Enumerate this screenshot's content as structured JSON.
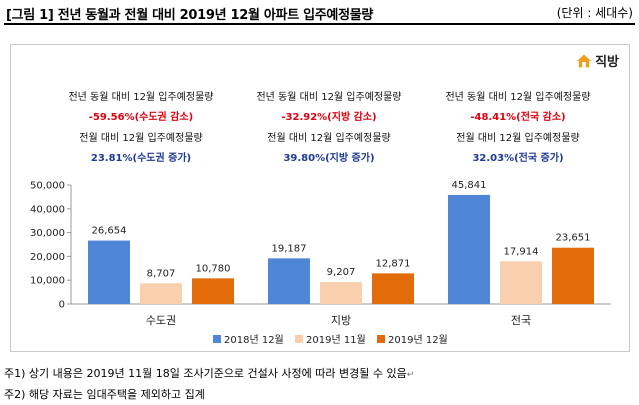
{
  "header": {
    "title": "[그림 1] 전년 동월과 전월 대비 2019년 12월 아파트 입주예정물량",
    "unit": "(단위 : 세대수)"
  },
  "brand": {
    "name": "직방",
    "icon": "house-logo-icon",
    "color": "#f0a020"
  },
  "colors": {
    "2018": "#4f86d6",
    "2019_11": "#f9cfae",
    "2019_12": "#e36c0a",
    "decrease": "#e0000e",
    "increase": "#1f3a93"
  },
  "annotations": [
    {
      "yoy_label": "전년 동월 대비 12월 입주예정물량",
      "yoy_value": "-59.56%(수도권 감소)",
      "mom_label": "전월 대비 12월 입주예정물량",
      "mom_value": "23.81%(수도권 증가)"
    },
    {
      "yoy_label": "전년 동월 대비 12월 입주예정물량",
      "yoy_value": "-32.92%(지방 감소)",
      "mom_label": "전월 대비 12월 입주예정물량",
      "mom_value": "39.80%(지방 증가)"
    },
    {
      "yoy_label": "전년 동월 대비 12월 입주예정물량",
      "yoy_value": "-48.41%(전국 감소)",
      "mom_label": "전월 대비 12월 입주예정물량",
      "mom_value": "32.03%(전국 증가)"
    }
  ],
  "chart_data": {
    "type": "bar",
    "title": "",
    "xlabel": "",
    "ylabel": "",
    "categories": [
      "수도권",
      "지방",
      "전국"
    ],
    "series": [
      {
        "name": "2018년 12월",
        "values": [
          26654,
          19187,
          45841
        ],
        "labels": [
          "26,654",
          "19,187",
          "45,841"
        ]
      },
      {
        "name": "2019년 11월",
        "values": [
          8707,
          9207,
          17914
        ],
        "labels": [
          "8,707",
          "9,207",
          "17,914"
        ]
      },
      {
        "name": "2019년 12월",
        "values": [
          10780,
          12871,
          23651
        ],
        "labels": [
          "10,780",
          "12,871",
          "23,651"
        ]
      }
    ],
    "ylim": [
      0,
      50000
    ],
    "yticks": [
      "0",
      "10,000",
      "20,000",
      "30,000",
      "40,000",
      "50,000"
    ],
    "grid": false,
    "legend": "bottom"
  },
  "notes": [
    "주1) 상기 내용은 2019년 11월 18일 조사기준으로 건설사 사정에 따라 변경될 수 있음",
    "주2) 해당 자료는 임대주택을 제외하고 집계"
  ]
}
